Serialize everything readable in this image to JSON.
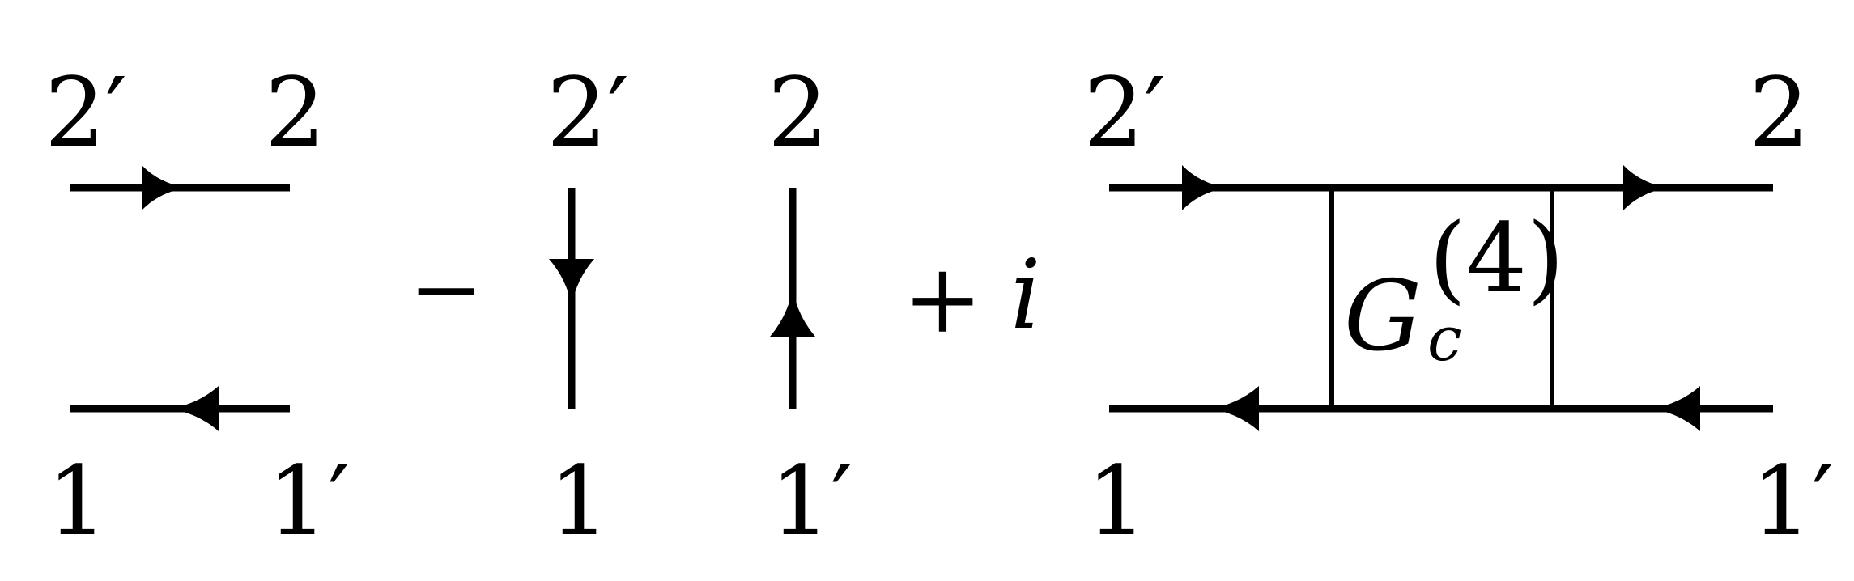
{
  "labels": {
    "two_prime": "2′",
    "two": "2",
    "one": "1",
    "one_prime": "1′"
  },
  "operators": {
    "minus": "−",
    "plus": "+",
    "imaginary": "i"
  },
  "vertex_function": {
    "symbol": "G",
    "subscript": "c",
    "superscript": "(4)"
  }
}
